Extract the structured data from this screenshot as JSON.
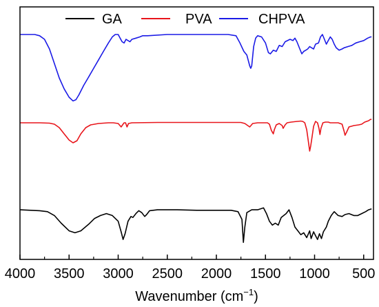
{
  "chart_data": {
    "type": "line",
    "xlabel": "Wavenumber (cm",
    "xlabel_sup": "−1",
    "xlabel_close": ")",
    "ylabel": "",
    "title": "",
    "xlim": [
      4000,
      400
    ],
    "x_reversed": true,
    "x_ticks": [
      4000,
      3500,
      3000,
      2500,
      2000,
      1500,
      1000,
      500
    ],
    "y_ticks_visible": false,
    "grid": false,
    "legend_position": "top",
    "series": [
      {
        "name": "GA",
        "color": "#000000",
        "points": [
          [
            4000,
            0.54
          ],
          [
            3800,
            0.55
          ],
          [
            3720,
            0.56
          ],
          [
            3650,
            0.6
          ],
          [
            3580,
            0.68
          ],
          [
            3500,
            0.76
          ],
          [
            3440,
            0.78
          ],
          [
            3380,
            0.76
          ],
          [
            3300,
            0.69
          ],
          [
            3240,
            0.63
          ],
          [
            3180,
            0.6
          ],
          [
            3120,
            0.58
          ],
          [
            3060,
            0.6
          ],
          [
            3000,
            0.66
          ],
          [
            2970,
            0.77
          ],
          [
            2950,
            0.85
          ],
          [
            2930,
            0.79
          ],
          [
            2900,
            0.66
          ],
          [
            2870,
            0.61
          ],
          [
            2850,
            0.62
          ],
          [
            2820,
            0.58
          ],
          [
            2790,
            0.55
          ],
          [
            2760,
            0.57
          ],
          [
            2730,
            0.61
          ],
          [
            2710,
            0.59
          ],
          [
            2680,
            0.55
          ],
          [
            2600,
            0.54
          ],
          [
            2400,
            0.54
          ],
          [
            2200,
            0.545
          ],
          [
            2000,
            0.545
          ],
          [
            1850,
            0.545
          ],
          [
            1780,
            0.56
          ],
          [
            1740,
            0.64
          ],
          [
            1725,
            0.88
          ],
          [
            1710,
            0.72
          ],
          [
            1690,
            0.57
          ],
          [
            1640,
            0.54
          ],
          [
            1580,
            0.54
          ],
          [
            1520,
            0.52
          ],
          [
            1490,
            0.58
          ],
          [
            1460,
            0.66
          ],
          [
            1430,
            0.7
          ],
          [
            1400,
            0.68
          ],
          [
            1370,
            0.7
          ],
          [
            1340,
            0.62
          ],
          [
            1290,
            0.58
          ],
          [
            1260,
            0.54
          ],
          [
            1230,
            0.62
          ],
          [
            1200,
            0.72
          ],
          [
            1170,
            0.76
          ],
          [
            1140,
            0.8
          ],
          [
            1110,
            0.78
          ],
          [
            1080,
            0.83
          ],
          [
            1050,
            0.76
          ],
          [
            1035,
            0.84
          ],
          [
            1010,
            0.77
          ],
          [
            990,
            0.81
          ],
          [
            970,
            0.85
          ],
          [
            950,
            0.79
          ],
          [
            930,
            0.84
          ],
          [
            910,
            0.77
          ],
          [
            880,
            0.72
          ],
          [
            860,
            0.66
          ],
          [
            830,
            0.6
          ],
          [
            800,
            0.56
          ],
          [
            760,
            0.6
          ],
          [
            720,
            0.61
          ],
          [
            690,
            0.59
          ],
          [
            650,
            0.58
          ],
          [
            600,
            0.6
          ],
          [
            560,
            0.6
          ],
          [
            520,
            0.58
          ],
          [
            480,
            0.56
          ],
          [
            450,
            0.54
          ],
          [
            420,
            0.53
          ]
        ]
      },
      {
        "name": "PVA",
        "color": "#e8141a",
        "points": [
          [
            4000,
            0.3
          ],
          [
            3800,
            0.3
          ],
          [
            3700,
            0.305
          ],
          [
            3650,
            0.32
          ],
          [
            3600,
            0.37
          ],
          [
            3550,
            0.46
          ],
          [
            3500,
            0.55
          ],
          [
            3460,
            0.59
          ],
          [
            3420,
            0.56
          ],
          [
            3380,
            0.46
          ],
          [
            3330,
            0.37
          ],
          [
            3280,
            0.33
          ],
          [
            3200,
            0.31
          ],
          [
            3100,
            0.3
          ],
          [
            3050,
            0.3
          ],
          [
            3000,
            0.31
          ],
          [
            2970,
            0.36
          ],
          [
            2950,
            0.32
          ],
          [
            2940,
            0.3
          ],
          [
            2925,
            0.3
          ],
          [
            2910,
            0.36
          ],
          [
            2895,
            0.31
          ],
          [
            2860,
            0.3
          ],
          [
            2600,
            0.295
          ],
          [
            2200,
            0.295
          ],
          [
            1900,
            0.295
          ],
          [
            1750,
            0.295
          ],
          [
            1710,
            0.31
          ],
          [
            1660,
            0.36
          ],
          [
            1630,
            0.31
          ],
          [
            1580,
            0.3
          ],
          [
            1480,
            0.3
          ],
          [
            1460,
            0.32
          ],
          [
            1440,
            0.41
          ],
          [
            1420,
            0.46
          ],
          [
            1410,
            0.4
          ],
          [
            1390,
            0.33
          ],
          [
            1360,
            0.31
          ],
          [
            1330,
            0.34
          ],
          [
            1320,
            0.38
          ],
          [
            1300,
            0.33
          ],
          [
            1280,
            0.3
          ],
          [
            1240,
            0.29
          ],
          [
            1180,
            0.28
          ],
          [
            1140,
            0.275
          ],
          [
            1120,
            0.28
          ],
          [
            1100,
            0.3
          ],
          [
            1080,
            0.4
          ],
          [
            1060,
            0.6
          ],
          [
            1050,
            0.71
          ],
          [
            1040,
            0.64
          ],
          [
            1030,
            0.55
          ],
          [
            1010,
            0.35
          ],
          [
            990,
            0.28
          ],
          [
            970,
            0.3
          ],
          [
            955,
            0.38
          ],
          [
            945,
            0.47
          ],
          [
            935,
            0.38
          ],
          [
            915,
            0.3
          ],
          [
            890,
            0.29
          ],
          [
            860,
            0.29
          ],
          [
            840,
            0.3
          ],
          [
            800,
            0.3
          ],
          [
            760,
            0.3
          ],
          [
            720,
            0.32
          ],
          [
            700,
            0.42
          ],
          [
            690,
            0.48
          ],
          [
            675,
            0.44
          ],
          [
            650,
            0.36
          ],
          [
            600,
            0.34
          ],
          [
            550,
            0.33
          ],
          [
            520,
            0.32
          ],
          [
            490,
            0.29
          ],
          [
            470,
            0.28
          ],
          [
            450,
            0.27
          ],
          [
            430,
            0.25
          ],
          [
            420,
            0.25
          ]
        ]
      },
      {
        "name": "CHPVA",
        "color": "#1a1ae6",
        "points": [
          [
            4000,
            0.0
          ],
          [
            3900,
            0.0
          ],
          [
            3850,
            0.0
          ],
          [
            3800,
            0.01
          ],
          [
            3750,
            0.04
          ],
          [
            3700,
            0.12
          ],
          [
            3650,
            0.24
          ],
          [
            3600,
            0.36
          ],
          [
            3550,
            0.45
          ],
          [
            3500,
            0.52
          ],
          [
            3460,
            0.55
          ],
          [
            3430,
            0.54
          ],
          [
            3400,
            0.5
          ],
          [
            3350,
            0.42
          ],
          [
            3300,
            0.35
          ],
          [
            3250,
            0.28
          ],
          [
            3200,
            0.21
          ],
          [
            3150,
            0.14
          ],
          [
            3100,
            0.07
          ],
          [
            3060,
            0.02
          ],
          [
            3030,
            0.0
          ],
          [
            3000,
            0.0
          ],
          [
            2980,
            0.03
          ],
          [
            2960,
            0.06
          ],
          [
            2940,
            0.07
          ],
          [
            2920,
            0.04
          ],
          [
            2900,
            0.05
          ],
          [
            2880,
            0.06
          ],
          [
            2860,
            0.04
          ],
          [
            2820,
            0.03
          ],
          [
            2780,
            0.02
          ],
          [
            2750,
            0.01
          ],
          [
            2700,
            0.01
          ],
          [
            2500,
            0.0
          ],
          [
            2200,
            0.0
          ],
          [
            2000,
            0.0
          ],
          [
            1880,
            0.0
          ],
          [
            1800,
            0.01
          ],
          [
            1760,
            0.07
          ],
          [
            1720,
            0.14
          ],
          [
            1690,
            0.17
          ],
          [
            1660,
            0.26
          ],
          [
            1650,
            0.28
          ],
          [
            1640,
            0.26
          ],
          [
            1620,
            0.1
          ],
          [
            1600,
            0.03
          ],
          [
            1580,
            0.01
          ],
          [
            1540,
            0.02
          ],
          [
            1500,
            0.07
          ],
          [
            1470,
            0.15
          ],
          [
            1450,
            0.16
          ],
          [
            1420,
            0.13
          ],
          [
            1390,
            0.14
          ],
          [
            1360,
            0.09
          ],
          [
            1330,
            0.1
          ],
          [
            1300,
            0.06
          ],
          [
            1250,
            0.04
          ],
          [
            1220,
            0.05
          ],
          [
            1200,
            0.03
          ],
          [
            1180,
            0.06
          ],
          [
            1150,
            0.12
          ],
          [
            1130,
            0.16
          ],
          [
            1110,
            0.14
          ],
          [
            1090,
            0.13
          ],
          [
            1070,
            0.12
          ],
          [
            1050,
            0.1
          ],
          [
            1030,
            0.11
          ],
          [
            1010,
            0.12
          ],
          [
            990,
            0.08
          ],
          [
            960,
            0.07
          ],
          [
            940,
            0.02
          ],
          [
            920,
            0.0
          ],
          [
            900,
            0.04
          ],
          [
            880,
            0.08
          ],
          [
            860,
            0.05
          ],
          [
            840,
            0.02
          ],
          [
            820,
            0.04
          ],
          [
            800,
            0.08
          ],
          [
            780,
            0.11
          ],
          [
            750,
            0.13
          ],
          [
            720,
            0.12
          ],
          [
            700,
            0.11
          ],
          [
            660,
            0.1
          ],
          [
            620,
            0.09
          ],
          [
            580,
            0.07
          ],
          [
            540,
            0.06
          ],
          [
            500,
            0.05
          ],
          [
            460,
            0.03
          ],
          [
            430,
            0.02
          ],
          [
            420,
            0.02
          ]
        ]
      }
    ]
  }
}
